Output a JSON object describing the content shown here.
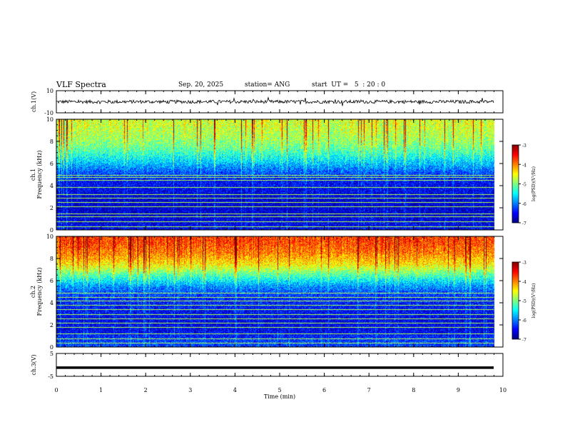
{
  "header": {
    "title": "VLF Spectra",
    "date": "Sep. 20, 2025",
    "station": "station= ANG",
    "start": "start  UT =   5  : 20 : 0"
  },
  "chart_data": [
    {
      "type": "line",
      "panel": "ch1-waveform",
      "ylabel": "ch.1(V)",
      "ylim": [
        -10,
        10
      ],
      "ytick_labels": [
        "10",
        "-10"
      ],
      "x_range_min": [
        0,
        9.8
      ],
      "baseline_value": 0,
      "color": "#000000"
    },
    {
      "type": "heatmap",
      "panel": "ch1-spectrogram",
      "ylabel_top": "ch.1",
      "ylabel": "Frequency (kHz)",
      "ylim": [
        0,
        10
      ],
      "ytick_labels": [
        "0",
        "2",
        "4",
        "6",
        "8",
        "10"
      ],
      "x_range_min": [
        0,
        9.8
      ],
      "colorbar": {
        "label": "log(PSD)(V²/Hz)",
        "range": [
          -7,
          -3
        ],
        "tick_labels": [
          "-3",
          "-4",
          "-5",
          "-6",
          "-7"
        ]
      },
      "mean_profile_by_freq": [
        {
          "freq_khz": 0.5,
          "log_psd": -6.6
        },
        {
          "freq_khz": 1.5,
          "log_psd": -6.7
        },
        {
          "freq_khz": 2.5,
          "log_psd": -6.7
        },
        {
          "freq_khz": 3.5,
          "log_psd": -6.6
        },
        {
          "freq_khz": 4.5,
          "log_psd": -6.5
        },
        {
          "freq_khz": 5.5,
          "log_psd": -6.1
        },
        {
          "freq_khz": 6.5,
          "log_psd": -5.6
        },
        {
          "freq_khz": 7.5,
          "log_psd": -5.2
        },
        {
          "freq_khz": 8.5,
          "log_psd": -5.0
        },
        {
          "freq_khz": 9.5,
          "log_psd": -4.9
        }
      ],
      "horizontal_lines_khz": [
        0.3,
        0.8,
        1.2,
        1.5,
        2.1,
        2.5,
        2.9,
        3.2,
        3.9,
        4.5,
        4.8,
        5.0
      ]
    },
    {
      "type": "heatmap",
      "panel": "ch2-spectrogram",
      "ylabel_top": "ch.2",
      "ylabel": "Frequency (kHz)",
      "ylim": [
        0,
        10
      ],
      "ytick_labels": [
        "0",
        "2",
        "4",
        "6",
        "8",
        "10"
      ],
      "x_range_min": [
        0,
        9.8
      ],
      "colorbar": {
        "label": "log(PSD)(V²/Hz)",
        "range": [
          -7,
          -3
        ],
        "tick_labels": [
          "-3",
          "-4",
          "-5",
          "-6",
          "-7"
        ]
      },
      "mean_profile_by_freq": [
        {
          "freq_khz": 0.5,
          "log_psd": -6.3
        },
        {
          "freq_khz": 1.5,
          "log_psd": -6.6
        },
        {
          "freq_khz": 2.5,
          "log_psd": -6.6
        },
        {
          "freq_khz": 3.5,
          "log_psd": -6.5
        },
        {
          "freq_khz": 4.5,
          "log_psd": -6.4
        },
        {
          "freq_khz": 5.5,
          "log_psd": -6.0
        },
        {
          "freq_khz": 6.5,
          "log_psd": -5.3
        },
        {
          "freq_khz": 7.5,
          "log_psd": -4.6
        },
        {
          "freq_khz": 8.5,
          "log_psd": -4.2
        },
        {
          "freq_khz": 9.5,
          "log_psd": -4.0
        }
      ],
      "horizontal_lines_khz": [
        0.4,
        0.8,
        1.2,
        1.8,
        2.2,
        2.6,
        3.0,
        3.4,
        3.8,
        4.2,
        4.5,
        4.9
      ]
    },
    {
      "type": "line",
      "panel": "ch3-waveform",
      "ylabel": "ch.3(V)",
      "ylim": [
        -5,
        5
      ],
      "ytick_labels": [
        "5",
        "-5"
      ],
      "x_range_min": [
        0,
        9.8
      ],
      "baseline_value": -1.2,
      "color": "#000000"
    }
  ],
  "x_axis": {
    "label": "Time (min)",
    "range": [
      0,
      10
    ],
    "tick_labels": [
      "0",
      "1",
      "2",
      "3",
      "4",
      "5",
      "6",
      "7",
      "8",
      "9",
      "10"
    ]
  },
  "colors": {
    "jet_low": "#00007f",
    "jet_mid": "#7fff7f",
    "jet_high": "#7f0000"
  }
}
